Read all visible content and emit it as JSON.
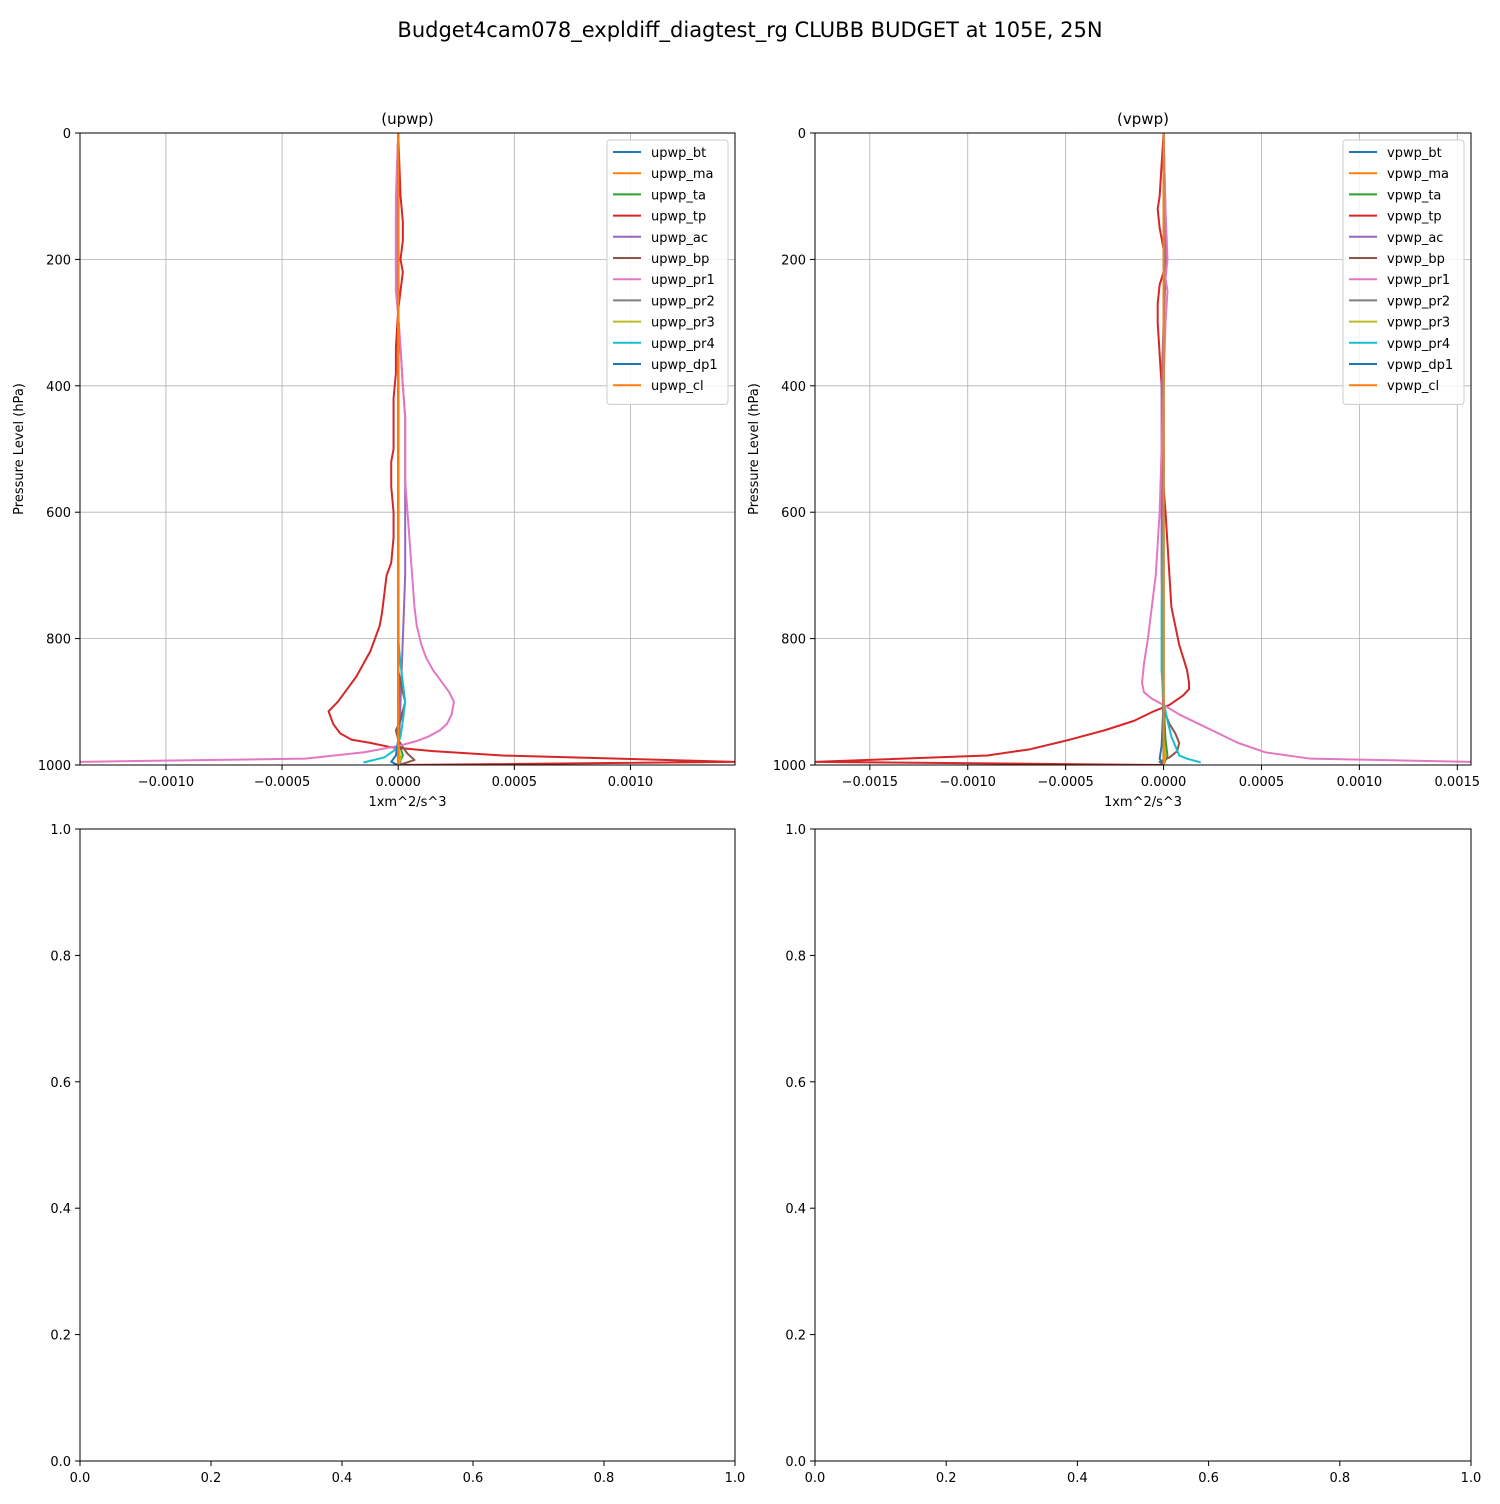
{
  "figure": {
    "title": "Budget4cam078_expldiff_diagtest_rg CLUBB BUDGET at 105E, 25N"
  },
  "chart_data": [
    {
      "type": "line",
      "title": "(upwp)",
      "xlabel": "1xm^2/s^3",
      "ylabel": "Pressure Level (hPa)",
      "xlim": [
        -0.00137,
        0.00145
      ],
      "ylim": [
        1000,
        0
      ],
      "xticks": [
        -0.001,
        -0.0005,
        0.0,
        0.0005,
        0.001
      ],
      "xtick_labels": [
        "−0.0010",
        "−0.0005",
        "0.0000",
        "0.0005",
        "0.0010"
      ],
      "yticks": [
        0,
        200,
        400,
        600,
        800,
        1000
      ],
      "ytick_labels": [
        "0",
        "200",
        "400",
        "600",
        "800",
        "1000"
      ],
      "grid": true,
      "legend_position": "top-right",
      "series": [
        {
          "name": "upwp_bt",
          "color": "#1f77b4",
          "x": [
            0,
            0,
            0,
            0,
            0
          ],
          "y": [
            0,
            300,
            600,
            900,
            1000
          ]
        },
        {
          "name": "upwp_ma",
          "color": "#ff7f0e",
          "x": [
            0,
            0,
            0,
            0,
            0,
            1e-05,
            0
          ],
          "y": [
            0,
            300,
            600,
            900,
            975,
            990,
            1000
          ]
        },
        {
          "name": "upwp_ta",
          "color": "#2ca02c",
          "x": [
            0,
            0,
            0,
            0,
            1e-05,
            0,
            2e-05,
            0
          ],
          "y": [
            0,
            300,
            600,
            850,
            920,
            960,
            985,
            1000
          ]
        },
        {
          "name": "upwp_tp",
          "color": "#d62728",
          "x": [
            0,
            1e-05,
            2e-05,
            2e-05,
            1e-05,
            2e-05,
            0,
            -1e-05,
            -1e-05,
            -2e-05,
            -2e-05,
            -2e-05,
            -3e-05,
            -3e-05,
            -2e-05,
            -2e-05,
            -3e-05,
            -5e-05,
            -6e-05,
            -7e-05,
            -8e-05,
            -0.0001,
            -0.00012,
            -0.00015,
            -0.00018,
            -0.00022,
            -0.00026,
            -0.0003,
            -0.00028,
            -0.00025,
            -0.0002,
            -0.00012,
            -3e-05,
            0.00015,
            0.00045,
            0.00145,
            0.0
          ],
          "y": [
            0,
            100,
            140,
            170,
            200,
            220,
            280,
            340,
            380,
            420,
            460,
            500,
            520,
            560,
            600,
            640,
            680,
            700,
            730,
            760,
            780,
            800,
            820,
            840,
            860,
            880,
            900,
            915,
            935,
            950,
            960,
            965,
            972,
            978,
            985,
            995,
            1000
          ]
        },
        {
          "name": "upwp_ac",
          "color": "#9467bd",
          "x": [
            0,
            -1e-05,
            -1e-05,
            -1e-05,
            0,
            1e-05,
            2e-05,
            3e-05,
            3e-05,
            3e-05,
            3e-05,
            3e-05,
            2e-05,
            1e-05,
            0
          ],
          "y": [
            0,
            130,
            170,
            220,
            290,
            340,
            400,
            450,
            500,
            550,
            600,
            700,
            800,
            900,
            1000
          ]
        },
        {
          "name": "upwp_bp",
          "color": "#8c564b",
          "x": [
            0,
            0,
            0,
            0,
            0,
            0,
            1e-05,
            2e-05,
            3e-05,
            2e-05,
            1e-05,
            -1e-05,
            0,
            2e-05,
            4e-05,
            7e-05,
            3e-05,
            0
          ],
          "y": [
            0,
            300,
            600,
            750,
            800,
            850,
            870,
            885,
            900,
            915,
            930,
            945,
            960,
            972,
            982,
            992,
            997,
            1000
          ]
        },
        {
          "name": "upwp_pr1",
          "color": "#e377c2",
          "x": [
            0,
            -1e-05,
            -1e-05,
            -1e-05,
            -1e-05,
            0,
            1e-05,
            2e-05,
            3e-05,
            3e-05,
            3e-05,
            4e-05,
            5e-05,
            6e-05,
            7e-05,
            8e-05,
            0.0001,
            0.00012,
            0.00015,
            0.00019,
            0.00022,
            0.00024,
            0.00023,
            0.00021,
            0.00018,
            0.00013,
            8e-05,
            0.0,
            -0.00015,
            -0.0004,
            -0.00137
          ],
          "y": [
            0,
            100,
            150,
            200,
            250,
            290,
            340,
            400,
            450,
            500,
            550,
            600,
            650,
            700,
            750,
            780,
            810,
            830,
            850,
            870,
            885,
            900,
            920,
            935,
            945,
            955,
            962,
            970,
            980,
            990,
            995
          ]
        },
        {
          "name": "upwp_pr2",
          "color": "#7f7f7f",
          "x": [
            0,
            0,
            0,
            0,
            0,
            0,
            1e-05,
            0
          ],
          "y": [
            0,
            300,
            600,
            900,
            970,
            985,
            995,
            1000
          ]
        },
        {
          "name": "upwp_pr3",
          "color": "#bcbd22",
          "x": [
            0,
            0,
            0,
            0,
            0,
            1e-05,
            0
          ],
          "y": [
            0,
            300,
            600,
            900,
            970,
            990,
            1000
          ]
        },
        {
          "name": "upwp_pr4",
          "color": "#17becf",
          "x": [
            0,
            0,
            0,
            0,
            1e-05,
            2e-05,
            3e-05,
            2e-05,
            1e-05,
            -1e-05,
            -6e-05,
            -0.00015
          ],
          "y": [
            0,
            300,
            600,
            800,
            840,
            870,
            900,
            930,
            955,
            975,
            988,
            996
          ]
        },
        {
          "name": "upwp_dp1",
          "color": "#1f77b4",
          "x": [
            0,
            0,
            0,
            0,
            0,
            -1e-05,
            -3e-05,
            0
          ],
          "y": [
            0,
            300,
            600,
            900,
            960,
            985,
            995,
            1000
          ]
        },
        {
          "name": "upwp_cl",
          "color": "#ff7f0e",
          "x": [
            0,
            0,
            0,
            0
          ],
          "y": [
            0,
            500,
            900,
            1000
          ]
        }
      ]
    },
    {
      "type": "line",
      "title": "(vpwp)",
      "xlabel": "1xm^2/s^3",
      "ylabel": "Pressure Level (hPa)",
      "xlim": [
        -0.00178,
        0.00157
      ],
      "ylim": [
        1000,
        0
      ],
      "xticks": [
        -0.0015,
        -0.001,
        -0.0005,
        0.0,
        0.0005,
        0.001,
        0.0015
      ],
      "xtick_labels": [
        "−0.0015",
        "−0.0010",
        "−0.0005",
        "0.0000",
        "0.0005",
        "0.0010",
        "0.0015"
      ],
      "yticks": [
        0,
        200,
        400,
        600,
        800,
        1000
      ],
      "ytick_labels": [
        "0",
        "200",
        "400",
        "600",
        "800",
        "1000"
      ],
      "grid": true,
      "legend_position": "top-right",
      "series": [
        {
          "name": "vpwp_bt",
          "color": "#1f77b4",
          "x": [
            0,
            0,
            0,
            0,
            0
          ],
          "y": [
            0,
            300,
            600,
            900,
            1000
          ]
        },
        {
          "name": "vpwp_ma",
          "color": "#ff7f0e",
          "x": [
            0,
            0,
            0,
            0,
            1e-05,
            0
          ],
          "y": [
            0,
            300,
            600,
            950,
            985,
            1000
          ]
        },
        {
          "name": "vpwp_ta",
          "color": "#2ca02c",
          "x": [
            0,
            0,
            0,
            0,
            1e-05,
            2e-05,
            0
          ],
          "y": [
            0,
            300,
            600,
            900,
            960,
            985,
            1000
          ]
        },
        {
          "name": "vpwp_tp",
          "color": "#d62728",
          "x": [
            0,
            -2e-05,
            -3e-05,
            -2e-05,
            1e-05,
            0,
            -2e-05,
            -3e-05,
            -3e-05,
            -2e-05,
            -1e-05,
            0,
            0,
            1e-05,
            2e-05,
            3e-05,
            4e-05,
            6e-05,
            8e-05,
            0.0001,
            0.00012,
            0.00013,
            0.00013,
            0.0001,
            3e-05,
            -5e-05,
            -0.00015,
            -0.0003,
            -0.00048,
            -0.00068,
            -0.0009,
            -0.00178,
            0.0
          ],
          "y": [
            0,
            100,
            120,
            150,
            200,
            220,
            240,
            270,
            300,
            350,
            400,
            500,
            560,
            600,
            650,
            700,
            750,
            780,
            810,
            830,
            850,
            870,
            880,
            890,
            905,
            915,
            930,
            945,
            960,
            975,
            985,
            995,
            1000
          ]
        },
        {
          "name": "vpwp_ac",
          "color": "#9467bd",
          "x": [
            0,
            1e-05,
            1e-05,
            1e-05,
            0,
            -1e-05,
            -1e-05,
            -1e-05,
            0
          ],
          "y": [
            0,
            130,
            170,
            230,
            300,
            400,
            500,
            700,
            1000
          ]
        },
        {
          "name": "vpwp_bp",
          "color": "#8c564b",
          "x": [
            0,
            0,
            0,
            0,
            0,
            1e-05,
            3e-05,
            6e-05,
            8e-05,
            7e-05,
            3e-05,
            -2e-05,
            0
          ],
          "y": [
            0,
            300,
            600,
            800,
            900,
            920,
            935,
            950,
            965,
            978,
            988,
            995,
            1000
          ]
        },
        {
          "name": "vpwp_pr1",
          "color": "#e377c2",
          "x": [
            0,
            1e-05,
            2e-05,
            1e-05,
            2e-05,
            1e-05,
            0,
            -1e-05,
            -2e-05,
            -3e-05,
            -4e-05,
            -6e-05,
            -8e-05,
            -0.0001,
            -0.00011,
            -0.0001,
            -6e-05,
            0.0,
            8e-05,
            0.00018,
            0.00028,
            0.00038,
            0.00052,
            0.00075,
            0.00157
          ],
          "y": [
            0,
            120,
            200,
            230,
            250,
            300,
            400,
            500,
            600,
            650,
            700,
            750,
            800,
            840,
            870,
            885,
            895,
            905,
            920,
            935,
            950,
            965,
            980,
            990,
            995
          ]
        },
        {
          "name": "vpwp_pr2",
          "color": "#7f7f7f",
          "x": [
            0,
            0,
            0,
            0,
            0,
            1e-05,
            0
          ],
          "y": [
            0,
            300,
            600,
            900,
            960,
            985,
            1000
          ]
        },
        {
          "name": "vpwp_pr3",
          "color": "#bcbd22",
          "x": [
            0,
            0,
            0,
            0,
            0,
            1e-05,
            0
          ],
          "y": [
            0,
            300,
            600,
            900,
            960,
            985,
            1000
          ]
        },
        {
          "name": "vpwp_pr4",
          "color": "#17becf",
          "x": [
            0,
            0,
            0,
            -1e-05,
            -1e-05,
            0,
            2e-05,
            4e-05,
            6e-05,
            8e-05,
            0.00012,
            0.00019
          ],
          "y": [
            0,
            300,
            600,
            750,
            850,
            900,
            930,
            955,
            970,
            985,
            990,
            996
          ]
        },
        {
          "name": "vpwp_dp1",
          "color": "#1f77b4",
          "x": [
            0,
            0,
            0,
            0,
            -1e-05,
            -2e-05,
            0
          ],
          "y": [
            0,
            300,
            600,
            900,
            970,
            990,
            1000
          ]
        },
        {
          "name": "vpwp_cl",
          "color": "#ff7f0e",
          "x": [
            0,
            0,
            0,
            0
          ],
          "y": [
            0,
            500,
            900,
            1000
          ]
        }
      ]
    },
    {
      "type": "line",
      "title": "",
      "xlabel": "",
      "ylabel": "",
      "xlim": [
        0,
        1
      ],
      "ylim": [
        0,
        1
      ],
      "xticks": [
        0,
        0.2,
        0.4,
        0.6,
        0.8,
        1.0
      ],
      "xtick_labels": [
        "0.0",
        "0.2",
        "0.4",
        "0.6",
        "0.8",
        "1.0"
      ],
      "yticks": [
        0,
        0.2,
        0.4,
        0.6,
        0.8,
        1.0
      ],
      "ytick_labels": [
        "0.0",
        "0.2",
        "0.4",
        "0.6",
        "0.8",
        "1.0"
      ],
      "grid": false,
      "series": []
    },
    {
      "type": "line",
      "title": "",
      "xlabel": "",
      "ylabel": "",
      "xlim": [
        0,
        1
      ],
      "ylim": [
        0,
        1
      ],
      "xticks": [
        0,
        0.2,
        0.4,
        0.6,
        0.8,
        1.0
      ],
      "xtick_labels": [
        "0.0",
        "0.2",
        "0.4",
        "0.6",
        "0.8",
        "1.0"
      ],
      "yticks": [
        0,
        0.2,
        0.4,
        0.6,
        0.8,
        1.0
      ],
      "ytick_labels": [
        "0.0",
        "0.2",
        "0.4",
        "0.6",
        "0.8",
        "1.0"
      ],
      "grid": false,
      "series": []
    }
  ]
}
